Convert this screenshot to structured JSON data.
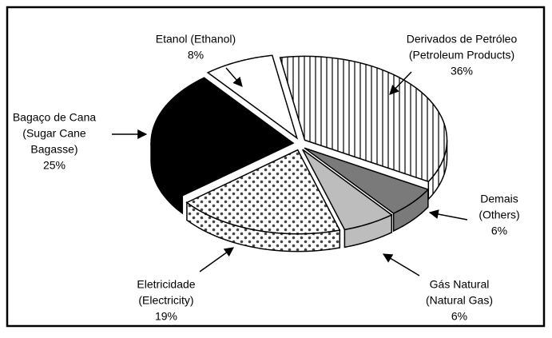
{
  "chart_data": {
    "type": "pie",
    "categories": [
      [
        "Derivados de Petróleo",
        "(Petroleum Products)"
      ],
      [
        "Demais",
        "(Others)"
      ],
      [
        "Gás Natural",
        "(Natural Gas)"
      ],
      [
        "Eletricidade",
        "(Electricity)"
      ],
      [
        "Bagaço de Cana",
        "(Sugar Cane",
        "Bagasse)"
      ],
      [
        "Etanol (Ethanol)"
      ]
    ],
    "values": [
      36,
      6,
      6,
      19,
      25,
      8
    ],
    "value_labels": [
      "36%",
      "6%",
      "6%",
      "19%",
      "25%",
      "8%"
    ],
    "colors": [
      "url(#stripes)",
      "#7a7a7a",
      "#bdbdbd",
      "url(#dots)",
      "#000000",
      "#ffffff"
    ]
  }
}
